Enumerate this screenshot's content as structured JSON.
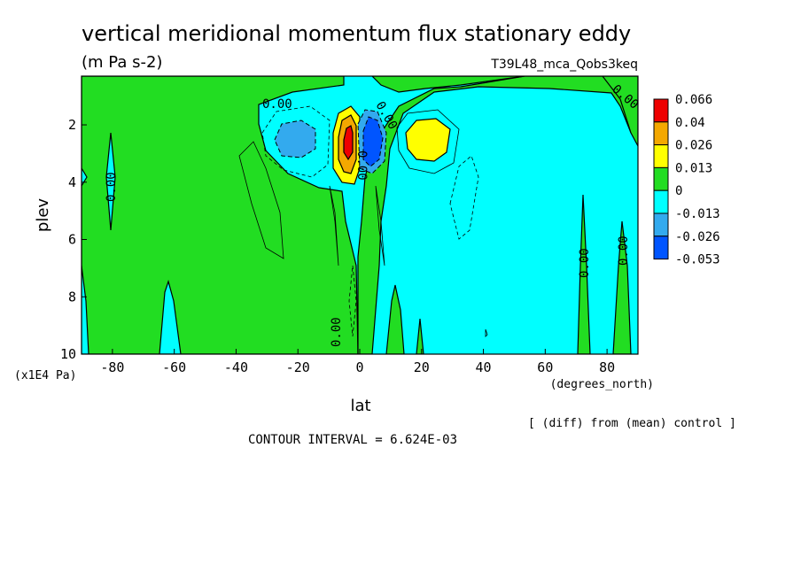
{
  "chart_data": {
    "type": "heatmap",
    "title": "vertical meridional momentum flux stationary eddy",
    "units": "(m Pa s-2)",
    "run_label": "T39L48_mca_Qobs3keq",
    "xlabel": "lat",
    "x_unit_label": "(degrees_north)",
    "ylabel": "plev",
    "y_unit_label": "(x1E4 Pa)",
    "footer_note": "[ (diff) from (mean) control ]",
    "contour_interval": "CONTOUR INTERVAL = 6.624E-03",
    "x_ticks": [
      -80,
      -60,
      -40,
      -20,
      0,
      20,
      40,
      60,
      80
    ],
    "x_tick_labels": [
      "-80",
      "-60",
      "-40",
      "-20",
      "0",
      "20",
      "40",
      "60",
      "80"
    ],
    "y_ticks": [
      2,
      4,
      6,
      8,
      10
    ],
    "y_tick_labels": [
      "2",
      "4",
      "6",
      "8",
      "10"
    ],
    "xlim": [
      -90,
      90
    ],
    "ylim": [
      10,
      0.3
    ],
    "y_inverted": true,
    "colorbar": {
      "labels": [
        "0.066",
        "0.04",
        "0.026",
        "0.013",
        "0",
        "-0.013",
        "-0.026",
        "-0.053"
      ],
      "colors": [
        "#ee0000",
        "#f4a800",
        "#ffff00",
        "#22dd22",
        "#00ffff",
        "#33aaee",
        "#0055ff"
      ]
    },
    "contour_labels": [
      "0.00",
      "0.00",
      "0.00",
      "0.00",
      "0.00",
      "0.00",
      "0.00",
      "0.00"
    ],
    "features": [
      {
        "kind": "max",
        "lat": -3,
        "plev": 2.4,
        "value": 0.066
      },
      {
        "kind": "min",
        "lat": 5,
        "plev": 2.5,
        "value": -0.053
      },
      {
        "kind": "max",
        "lat": 23,
        "plev": 2.5,
        "value": 0.026
      },
      {
        "kind": "min",
        "lat": -20,
        "plev": 2.4,
        "value": -0.026
      }
    ]
  }
}
